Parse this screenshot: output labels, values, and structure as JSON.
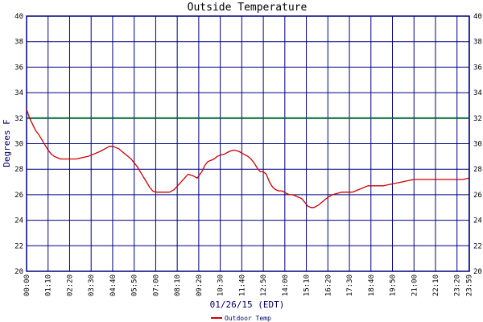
{
  "chart_data": {
    "type": "line",
    "title": "Outside Temperature",
    "xlabel": "01/26/15 (EDT)",
    "ylabel": "Degrees F",
    "ylim": [
      20,
      40
    ],
    "yticks": [
      20,
      22,
      24,
      26,
      28,
      30,
      32,
      34,
      36,
      38,
      40
    ],
    "xlim_minutes": [
      0,
      1440
    ],
    "xtick_labels": [
      "00:00",
      "01:10",
      "02:20",
      "03:30",
      "04:40",
      "05:50",
      "07:00",
      "08:10",
      "09:20",
      "10:30",
      "11:40",
      "12:50",
      "14:00",
      "15:10",
      "16:20",
      "17:30",
      "18:40",
      "19:50",
      "21:00",
      "22:10",
      "23:20",
      "23:59"
    ],
    "grid": true,
    "reference_line": {
      "y": 32,
      "color": "#006633"
    },
    "series": [
      {
        "name": "Outdoor Temp",
        "color": "#cc0000",
        "x": [
          "00:00",
          "00:10",
          "00:20",
          "00:30",
          "00:40",
          "00:50",
          "01:00",
          "01:10",
          "01:20",
          "01:30",
          "01:40",
          "01:50",
          "02:00",
          "02:10",
          "02:20",
          "02:40",
          "03:00",
          "03:20",
          "03:40",
          "04:00",
          "04:15",
          "04:30",
          "04:40",
          "04:50",
          "05:00",
          "05:10",
          "05:20",
          "05:30",
          "05:40",
          "05:50",
          "06:00",
          "06:10",
          "06:20",
          "06:30",
          "06:40",
          "06:50",
          "07:00",
          "07:15",
          "07:30",
          "07:45",
          "08:00",
          "08:15",
          "08:30",
          "08:45",
          "09:00",
          "09:15",
          "09:30",
          "09:40",
          "09:50",
          "10:00",
          "10:10",
          "10:20",
          "10:30",
          "10:45",
          "11:00",
          "11:15",
          "11:30",
          "11:45",
          "12:00",
          "12:10",
          "12:20",
          "12:30",
          "12:40",
          "12:50",
          "13:00",
          "13:10",
          "13:20",
          "13:30",
          "13:40",
          "13:50",
          "14:00",
          "14:05",
          "14:15",
          "14:25",
          "14:35",
          "14:45",
          "14:55",
          "15:05",
          "15:15",
          "15:25",
          "15:35",
          "15:50",
          "16:05",
          "16:20",
          "16:35",
          "16:50",
          "17:05",
          "17:20",
          "17:30",
          "17:40",
          "17:50",
          "18:00",
          "18:10",
          "18:20",
          "18:30",
          "18:40",
          "18:50",
          "19:00",
          "19:20",
          "19:40",
          "20:00",
          "20:20",
          "20:40",
          "21:00",
          "21:20",
          "21:40",
          "22:00",
          "22:20",
          "22:40",
          "23:00",
          "23:20",
          "23:40",
          "23:59"
        ],
        "values": [
          32.7,
          32.0,
          31.5,
          31.0,
          30.7,
          30.3,
          29.9,
          29.5,
          29.2,
          29.0,
          28.9,
          28.8,
          28.8,
          28.8,
          28.8,
          28.8,
          28.9,
          29.0,
          29.2,
          29.4,
          29.6,
          29.8,
          29.8,
          29.7,
          29.6,
          29.4,
          29.2,
          29.0,
          28.8,
          28.5,
          28.2,
          27.8,
          27.4,
          27.0,
          26.6,
          26.3,
          26.2,
          26.2,
          26.2,
          26.2,
          26.4,
          26.8,
          27.2,
          27.6,
          27.5,
          27.3,
          27.8,
          28.3,
          28.6,
          28.7,
          28.8,
          29.0,
          29.1,
          29.2,
          29.4,
          29.5,
          29.4,
          29.2,
          29.0,
          28.8,
          28.5,
          28.1,
          27.8,
          27.8,
          27.6,
          27.0,
          26.6,
          26.4,
          26.3,
          26.3,
          26.2,
          26.1,
          26.0,
          26.0,
          25.9,
          25.8,
          25.7,
          25.4,
          25.1,
          25.0,
          25.0,
          25.2,
          25.5,
          25.8,
          26.0,
          26.1,
          26.2,
          26.2,
          26.2,
          26.2,
          26.3,
          26.4,
          26.5,
          26.6,
          26.7,
          26.7,
          26.7,
          26.7,
          26.7,
          26.8,
          26.9,
          27.0,
          27.1,
          27.2,
          27.2,
          27.2,
          27.2,
          27.2,
          27.2,
          27.2,
          27.2,
          27.2,
          27.3
        ]
      }
    ],
    "legend_placement": "bottom-center"
  }
}
